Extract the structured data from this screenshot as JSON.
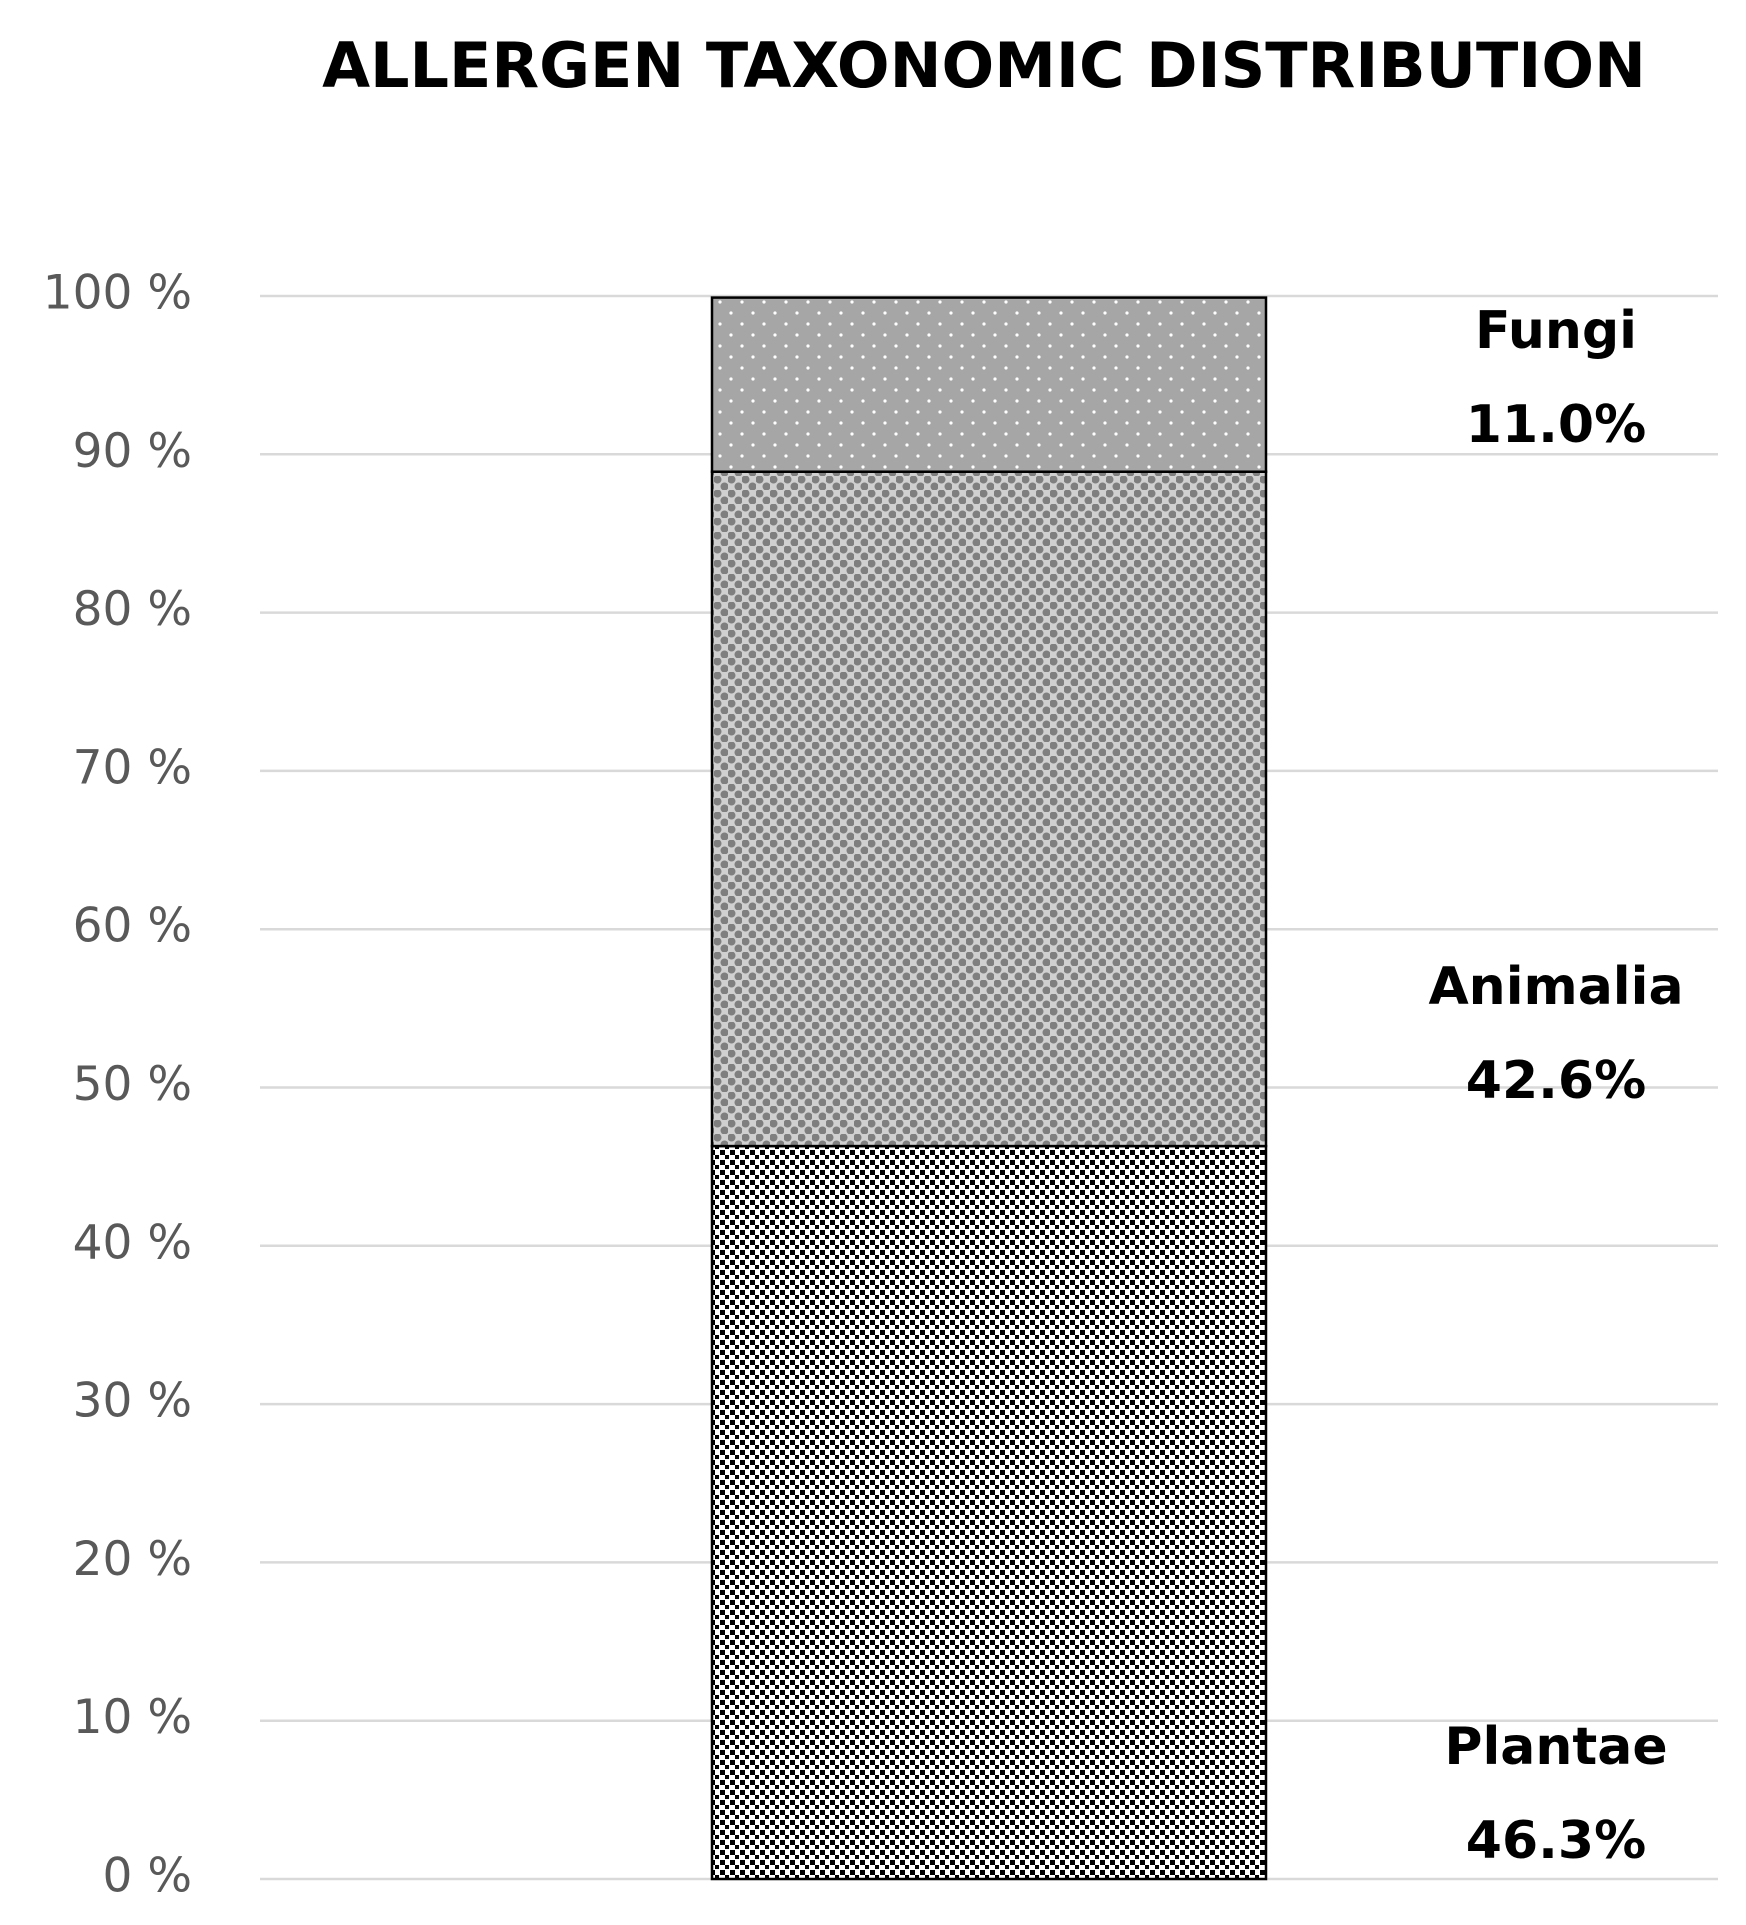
{
  "chart_data": {
    "type": "stacked_bar",
    "title": "ALLERGEN TAXONOMIC DISTRIBUTION",
    "categories": [
      null
    ],
    "series": [
      {
        "name": "Plantae",
        "color": "#000000",
        "values": [
          46.3
        ],
        "value_labels": [
          "46.3%"
        ]
      },
      {
        "name": "Animalia",
        "color": "#7f7f7f",
        "values": [
          42.6
        ],
        "value_labels": [
          "42.6%"
        ]
      },
      {
        "name": "Fungi",
        "color": "#a6a6a6",
        "values": [
          11.0
        ],
        "value_labels": [
          "11.0%"
        ]
      }
    ],
    "ylim": [
      0,
      100
    ],
    "yticks": [
      {
        "value": 0,
        "label": "0 %"
      },
      {
        "value": 10,
        "label": "10 %"
      },
      {
        "value": 20,
        "label": "20 %"
      },
      {
        "value": 30,
        "label": "30 %"
      },
      {
        "value": 40,
        "label": "40 %"
      },
      {
        "value": 50,
        "label": "50 %"
      },
      {
        "value": 60,
        "label": "60 %"
      },
      {
        "value": 70,
        "label": "70 %"
      },
      {
        "value": 80,
        "label": "80 %"
      },
      {
        "value": 90,
        "label": "90 %"
      },
      {
        "value": 100,
        "label": "100 %"
      }
    ],
    "grid": true
  }
}
